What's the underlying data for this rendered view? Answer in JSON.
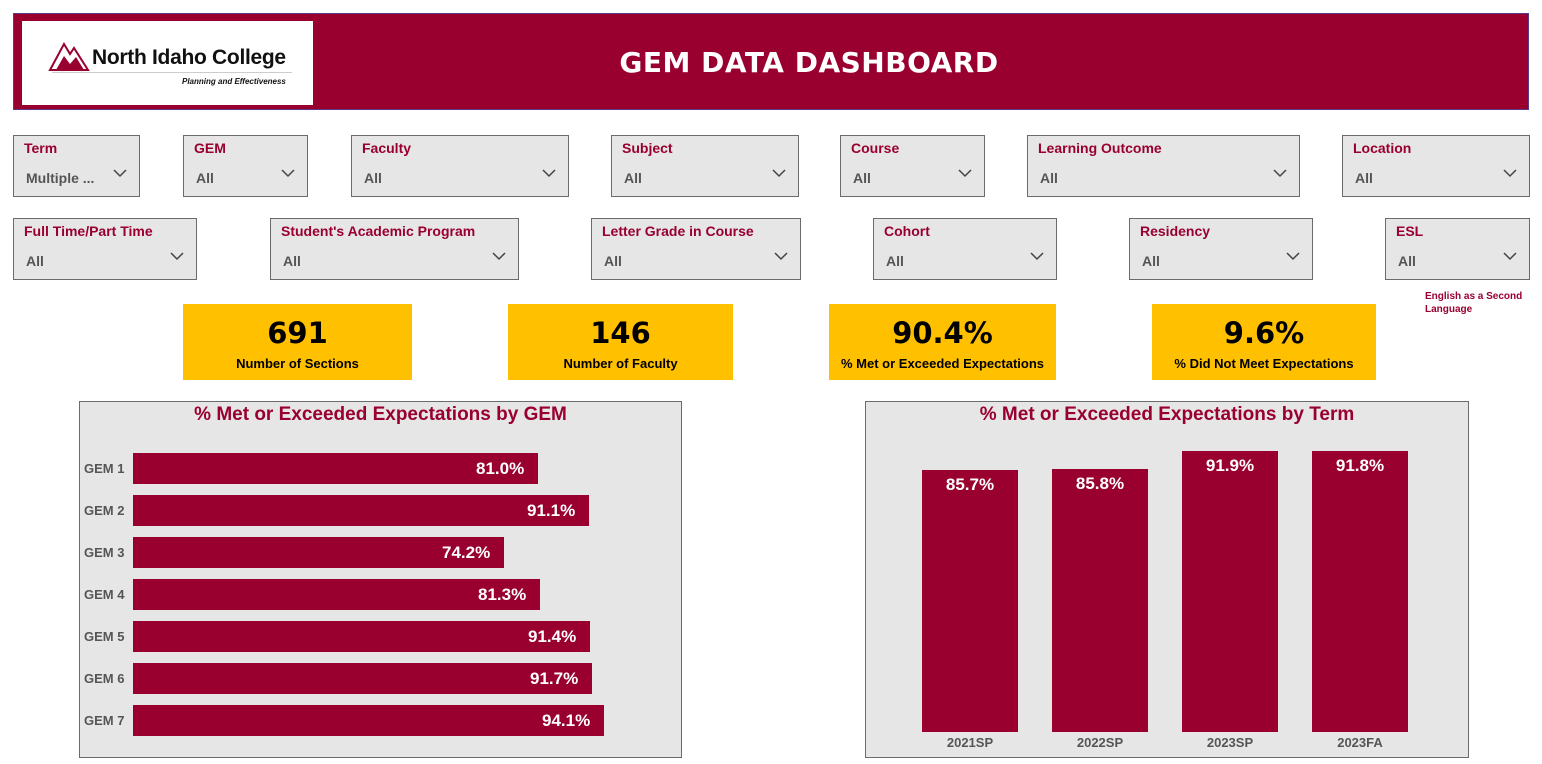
{
  "header": {
    "logo_text": "North Idaho College",
    "logo_subtitle": "Planning and Effectiveness",
    "title": "GEM DATA DASHBOARD",
    "brand_color": "#990030"
  },
  "filters_row1": [
    {
      "label": "Term",
      "value": "Multiple ..."
    },
    {
      "label": "GEM",
      "value": "All"
    },
    {
      "label": "Faculty",
      "value": "All"
    },
    {
      "label": "Subject",
      "value": "All"
    },
    {
      "label": "Course",
      "value": "All"
    },
    {
      "label": "Learning Outcome",
      "value": "All"
    },
    {
      "label": "Location",
      "value": "All"
    }
  ],
  "filters_row2": [
    {
      "label": "Full Time/Part Time",
      "value": "All"
    },
    {
      "label": "Student's Academic Program",
      "value": "All"
    },
    {
      "label": "Letter Grade in Course",
      "value": "All"
    },
    {
      "label": "Cohort",
      "value": "All"
    },
    {
      "label": "Residency",
      "value": "All"
    },
    {
      "label": "ESL",
      "value": "All"
    }
  ],
  "esl_note": "English as a Second Language",
  "kpis": [
    {
      "value": "691",
      "caption": "Number of Sections"
    },
    {
      "value": "146",
      "caption": "Number of Faculty"
    },
    {
      "value": "90.4%",
      "caption": "% Met or Exceeded Expectations"
    },
    {
      "value": "9.6%",
      "caption": "% Did Not Meet Expectations"
    }
  ],
  "kpi_color": "#ffc000",
  "chart_data": [
    {
      "type": "bar",
      "orientation": "horizontal",
      "title": "% Met or Exceeded Expectations by GEM",
      "categories": [
        "GEM 1",
        "GEM 2",
        "GEM 3",
        "GEM 4",
        "GEM 5",
        "GEM 6",
        "GEM 7"
      ],
      "values": [
        81.0,
        91.1,
        74.2,
        81.3,
        91.4,
        91.7,
        94.1
      ],
      "labels": [
        "81.0%",
        "91.1%",
        "74.2%",
        "81.3%",
        "91.4%",
        "91.7%",
        "94.1%"
      ],
      "unit": "%",
      "color": "#990030",
      "grid": false
    },
    {
      "type": "bar",
      "orientation": "vertical",
      "title": "% Met or Exceeded Expectations by Term",
      "categories": [
        "2021SP",
        "2022SP",
        "2023SP",
        "2023FA"
      ],
      "values": [
        85.7,
        85.8,
        91.9,
        91.8
      ],
      "labels": [
        "85.7%",
        "85.8%",
        "91.9%",
        "91.8%"
      ],
      "unit": "%",
      "color": "#990030",
      "grid": false
    }
  ]
}
